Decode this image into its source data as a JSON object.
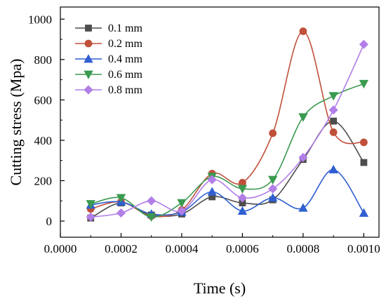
{
  "chart_data": {
    "type": "line",
    "xlabel": "Time (s)",
    "ylabel": "Cutting stress (Mpa)",
    "xlim": [
      0,
      0.00105
    ],
    "ylim": [
      -80,
      1060
    ],
    "xticks": [
      0,
      0.0002,
      0.0004,
      0.0006,
      0.0008,
      0.001
    ],
    "xtick_labels": [
      "0.0000",
      "0.0002",
      "0.0004",
      "0.0006",
      "0.0008",
      "0.0010"
    ],
    "yticks": [
      0,
      200,
      400,
      600,
      800,
      1000
    ],
    "ytick_labels": [
      "0",
      "200",
      "400",
      "600",
      "800",
      "1000"
    ],
    "grid": false,
    "legend_position": "top-left",
    "x": [
      0.0001,
      0.0002,
      0.0003,
      0.0004,
      0.0005,
      0.0006,
      0.0007,
      0.0008,
      0.0009,
      0.001
    ],
    "series": [
      {
        "name": "0.1 mm",
        "color": "#4d4d4d",
        "marker": "square",
        "values": [
          15,
          90,
          30,
          35,
          120,
          90,
          105,
          305,
          495,
          290
        ]
      },
      {
        "name": "0.2 mm",
        "color": "#c0503a",
        "marker": "circle",
        "values": [
          60,
          95,
          25,
          55,
          235,
          190,
          435,
          940,
          440,
          390
        ]
      },
      {
        "name": "0.4 mm",
        "color": "#2f5fd0",
        "marker": "triangle-up",
        "values": [
          80,
          95,
          35,
          45,
          145,
          50,
          115,
          65,
          255,
          40
        ]
      },
      {
        "name": "0.6 mm",
        "color": "#3a9a50",
        "marker": "triangle-down",
        "values": [
          85,
          115,
          20,
          90,
          220,
          160,
          205,
          515,
          620,
          680
        ]
      },
      {
        "name": "0.8 mm",
        "color": "#b27ee8",
        "marker": "diamond",
        "values": [
          20,
          40,
          100,
          50,
          205,
          115,
          160,
          315,
          550,
          875
        ]
      }
    ]
  }
}
